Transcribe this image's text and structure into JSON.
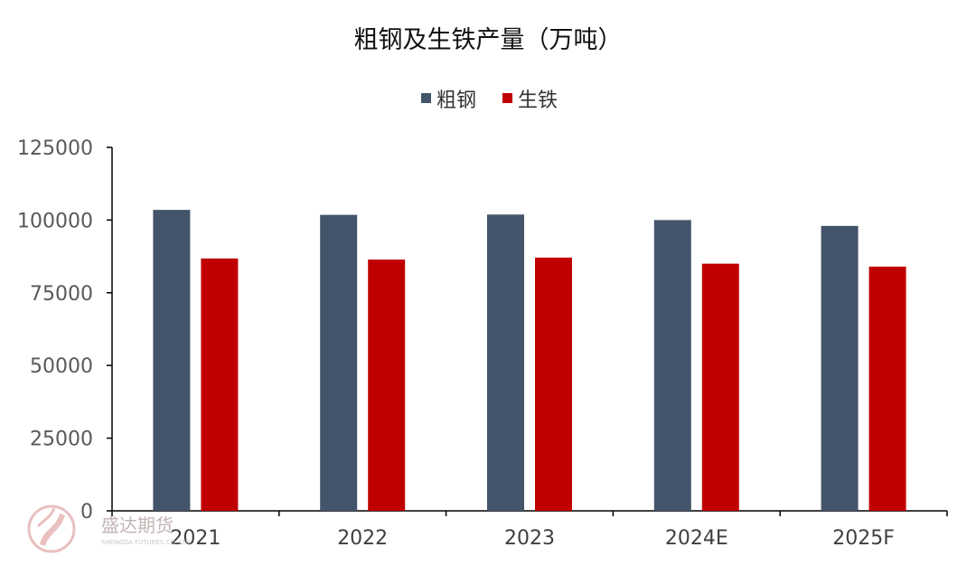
{
  "chart_data": {
    "type": "bar",
    "title": "粗钢及生铁产量（万吨）",
    "categories": [
      "2021",
      "2022",
      "2023",
      "2024E",
      "2025F"
    ],
    "series": [
      {
        "name": "粗钢",
        "color": "#44546a",
        "values": [
          103500,
          101800,
          101900,
          100000,
          98000
        ]
      },
      {
        "name": "生铁",
        "color": "#c00000",
        "values": [
          86800,
          86400,
          87100,
          85000,
          84000
        ]
      }
    ],
    "ylim": [
      0,
      125000
    ],
    "yticks": [
      "0",
      "25000",
      "50000",
      "75000",
      "100000",
      "125000"
    ],
    "legend_position": "top-center",
    "grid": false
  },
  "watermark": {
    "text": "盛达期货",
    "subtext": "SHENGDA FUTURES CO.,LTD.",
    "logo_color": "#e6b4b4"
  }
}
